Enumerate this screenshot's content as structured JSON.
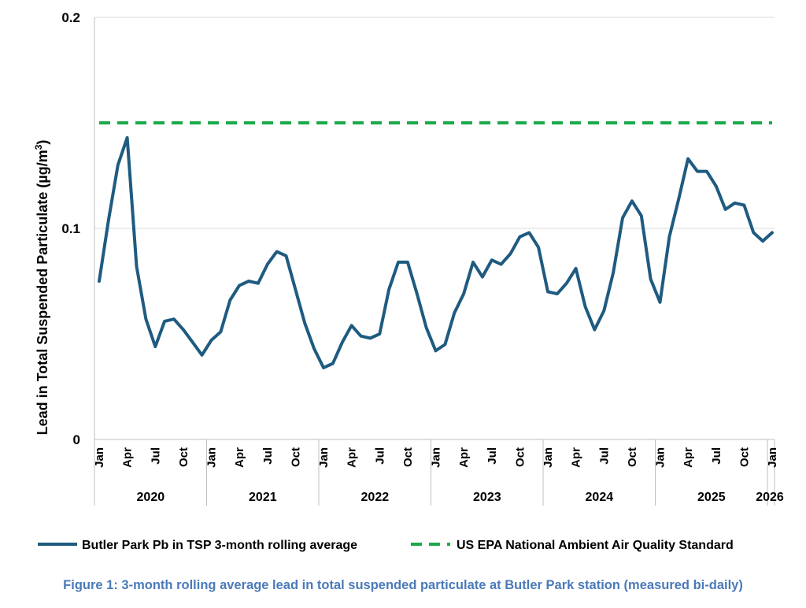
{
  "chart_data": {
    "type": "line",
    "ylabel_main": "Lead in Total Suspended Particulate (µg/m",
    "ylabel_sup": "3",
    "ylabel_end": ")",
    "ylim": [
      0,
      0.2
    ],
    "yticks": [
      0,
      0.1,
      0.2
    ],
    "ytick_labels": [
      "0",
      "0.1",
      "0.2"
    ],
    "grid": true,
    "month_labels": [
      "Jan",
      "Apr",
      "Jul",
      "Oct",
      "Jan",
      "Apr",
      "Jul",
      "Oct",
      "Jan",
      "Apr",
      "Jul",
      "Oct",
      "Jan",
      "Apr",
      "Jul",
      "Oct",
      "Jan",
      "Apr",
      "Jul",
      "Oct",
      "Jan",
      "Apr",
      "Jul",
      "Oct",
      "Jan"
    ],
    "year_labels": [
      "2020",
      "2021",
      "2022",
      "2023",
      "2024",
      "2025",
      "2026"
    ],
    "series": [
      {
        "name": "Butler Park Pb in TSP 3-month rolling average",
        "color": "#1f5b80",
        "style": "solid",
        "values": [
          0.075,
          0.104,
          0.13,
          0.143,
          0.082,
          0.057,
          0.044,
          0.056,
          0.057,
          0.052,
          0.046,
          0.04,
          0.047,
          0.051,
          0.066,
          0.073,
          0.075,
          0.074,
          0.083,
          0.089,
          0.087,
          0.071,
          0.055,
          0.043,
          0.034,
          0.036,
          0.046,
          0.054,
          0.049,
          0.048,
          0.05,
          0.071,
          0.084,
          0.084,
          0.069,
          0.053,
          0.042,
          0.045,
          0.06,
          0.069,
          0.084,
          0.077,
          0.085,
          0.083,
          0.088,
          0.096,
          0.098,
          0.091,
          0.07,
          0.069,
          0.074,
          0.081,
          0.063,
          0.052,
          0.061,
          0.079,
          0.105,
          0.113,
          0.106,
          0.076,
          0.065,
          0.096,
          0.114,
          0.133,
          0.127,
          0.127,
          0.12,
          0.109,
          0.112,
          0.111,
          0.098,
          0.094,
          0.098
        ]
      },
      {
        "name": "US EPA National Ambient Air Quality Standard",
        "color": "#1aaa4a",
        "style": "dashed",
        "values": [
          0.15,
          0.15
        ]
      }
    ]
  },
  "caption": "Figure 1: 3-month rolling average lead in total suspended particulate at Butler Park station (measured bi-daily)"
}
